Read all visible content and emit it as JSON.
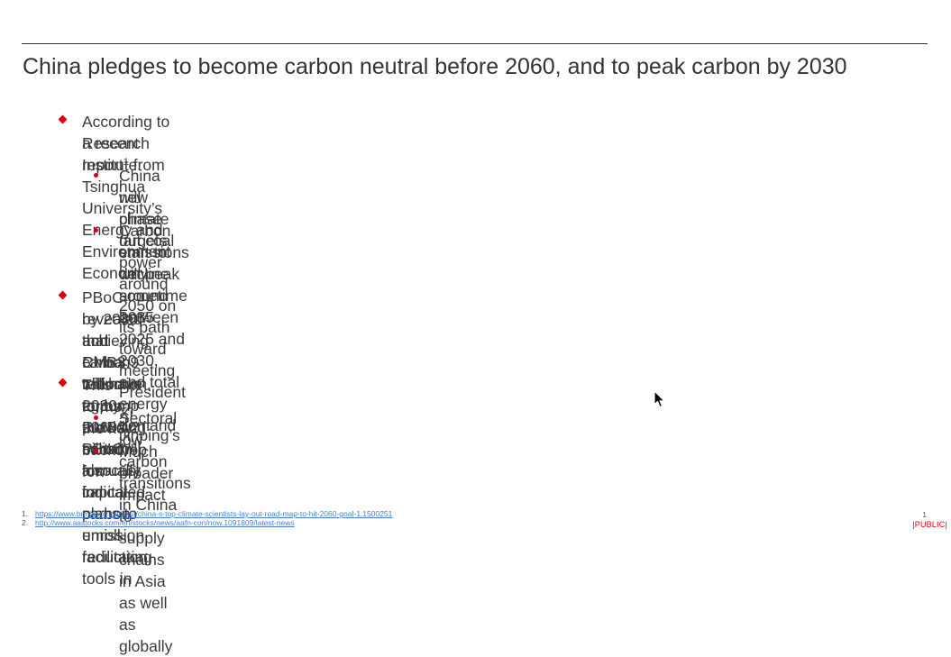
{
  "slide": {
    "title": "China pledges to become carbon neutral before 2060, and to peak carbon by 2030"
  },
  "bullets": [
    {
      "text_before_sup": "According to a recent report",
      "sup": "1",
      "text_after_sup_line1": " from Tsinghua University’s Energy and Environment Economy",
      "line2": "Research Institute:",
      "sub": [
        {
          "line1": "China will phase out coal power around 2050 on its path toward meeting President Xi Jinping’s",
          "line2": "new climate targets."
        },
        {
          "line1": "Carbon emissions will peak sometime between 2025 and 2030, and total energy demand will",
          "line2": "start to decline around 2035"
        }
      ]
    },
    {
      "text_before_sup": "PBoC revealed",
      "sup": "2",
      "text_after_sup_line1": " that China will have to pump RMB2.2 trillion annually for carbon emission reduction",
      "line2": "by 2030, and RMB3.9 trillion in 2030-2060. PBoC also indicated plans to unroll facilitating tools in",
      "line3": "achieving carbon reduction, eg by providing certain low-cost capital."
    },
    {
      "line1": "This forms the key backdrop for:",
      "sub": [
        {
          "line1": "Sectoral low carbon transitions in China"
        },
        {
          "line1": "Much broader impact to supply chains in Asia as well as globally"
        }
      ]
    }
  ],
  "footnotes": [
    {
      "num": "1.",
      "url": "https://www.bnnbloomberg.ca/china-s-top-climate-scientists-lay-out-road-map-to-hit-2060-goal-1.1500251"
    },
    {
      "num": "2.",
      "url": "http://www.aastocks.com/en/stocks/news/aafn-con/now.1091809/latest-news"
    }
  ],
  "page_number": "1",
  "classification": "|PUBLIC|",
  "colors": {
    "accent": "#db0011",
    "text": "#3a3a3a",
    "link": "#4a7fd0"
  },
  "icons": {
    "level1_bullet": "red-diamond",
    "level2_bullet": "red-dot",
    "cursor": "arrow-cursor"
  }
}
